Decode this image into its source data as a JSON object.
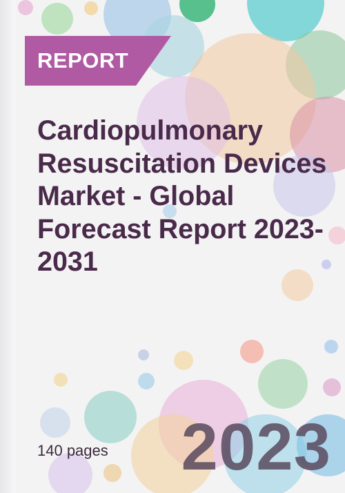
{
  "cover": {
    "tag": "REPORT",
    "title": "Cardiopulmonary Resuscitation Devices Market - Global Forecast Report 2023-2031",
    "pages": "140 pages",
    "year": "2023"
  },
  "colors": {
    "tag_background": "#b05aa3",
    "title_text": "#4a2a4a",
    "year_text": "#5a4a5e"
  }
}
